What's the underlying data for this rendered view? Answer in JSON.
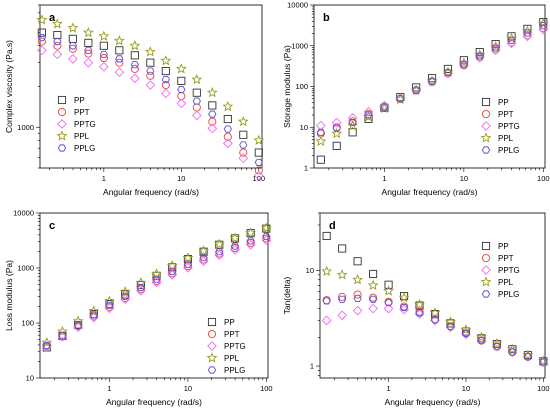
{
  "series_styles": [
    {
      "name": "PP",
      "marker": "square",
      "color": "#333333"
    },
    {
      "name": "PPT",
      "marker": "circle",
      "color": "#e8413a"
    },
    {
      "name": "PPTG",
      "marker": "diamond",
      "color": "#ee6bee"
    },
    {
      "name": "PPL",
      "marker": "star",
      "color": "#9a9a1e"
    },
    {
      "name": "PPLG",
      "marker": "hexagon",
      "color": "#5b4fd6"
    }
  ],
  "chart_data": [
    {
      "type": "scatter",
      "panel_label": "a",
      "xlabel": "Angular frequency (rad/s)",
      "ylabel": "Complex viscosity (Pa.s)",
      "xscale": "log",
      "yscale": "log",
      "xlim": [
        0.15,
        110
      ],
      "ylim": [
        500,
        8000
      ],
      "xticks": [
        1,
        10,
        100
      ],
      "xticklabels": [
        "1",
        "10",
        "100"
      ],
      "yticks": [
        1000
      ],
      "yticklabels": [
        "1000"
      ],
      "legend": "bottom-left",
      "x": [
        0.1585,
        0.2512,
        0.3981,
        0.631,
        1.0,
        1.585,
        2.512,
        3.981,
        6.31,
        10.0,
        15.85,
        25.12,
        39.81,
        63.1,
        100.0
      ],
      "series": [
        {
          "name": "PP",
          "values": [
            5000,
            4800,
            4500,
            4200,
            4000,
            3700,
            3400,
            3000,
            2600,
            2200,
            1800,
            1450,
            1150,
            880,
            650
          ]
        },
        {
          "name": "PPT",
          "values": [
            4300,
            4000,
            3800,
            3500,
            3250,
            3000,
            2700,
            2400,
            2050,
            1700,
            1400,
            1100,
            850,
            650,
            480
          ]
        },
        {
          "name": "PPTG",
          "values": [
            3700,
            3450,
            3200,
            3000,
            2800,
            2550,
            2300,
            2050,
            1780,
            1500,
            1220,
            980,
            760,
            590,
            440
          ]
        },
        {
          "name": "PPL",
          "values": [
            6200,
            5800,
            5400,
            5000,
            4700,
            4350,
            4000,
            3600,
            3100,
            2700,
            2250,
            1800,
            1420,
            1100,
            800
          ]
        },
        {
          "name": "PPLG",
          "values": [
            4600,
            4300,
            4000,
            3700,
            3450,
            3200,
            2900,
            2600,
            2250,
            1900,
            1560,
            1250,
            970,
            740,
            550
          ]
        }
      ]
    },
    {
      "type": "scatter",
      "panel_label": "b",
      "xlabel": "Angular frequency (rad/s)",
      "ylabel": "Storage modulus (Pa)",
      "xscale": "log",
      "yscale": "log",
      "xlim": [
        0.13,
        105
      ],
      "ylim": [
        1,
        10000
      ],
      "xticks": [
        1,
        10,
        100
      ],
      "xticklabels": [
        "1",
        "10",
        "100"
      ],
      "yticks": [
        1,
        10,
        100,
        1000,
        10000
      ],
      "yticklabels": [
        "1",
        "10",
        "100",
        "1000",
        "10000"
      ],
      "legend": "bottom-right",
      "x": [
        0.1585,
        0.2512,
        0.3981,
        0.631,
        1.0,
        1.585,
        2.512,
        3.981,
        6.31,
        10.0,
        15.85,
        25.12,
        39.81,
        63.1,
        100.0
      ],
      "series": [
        {
          "name": "PP",
          "values": [
            1.6,
            3.5,
            7.5,
            16,
            30,
            55,
            95,
            160,
            270,
            440,
            700,
            1100,
            1700,
            2600,
            3800
          ]
        },
        {
          "name": "PPT",
          "values": [
            7,
            10,
            14,
            21,
            32,
            50,
            80,
            130,
            210,
            330,
            520,
            800,
            1200,
            1800,
            2700
          ]
        },
        {
          "name": "PPTG",
          "values": [
            11,
            13,
            17,
            24,
            34,
            52,
            82,
            130,
            210,
            330,
            510,
            780,
            1150,
            1700,
            2500
          ]
        },
        {
          "name": "PPL",
          "values": [
            4.5,
            7,
            11,
            18,
            29,
            48,
            80,
            135,
            225,
            370,
            600,
            950,
            1500,
            2300,
            3500
          ]
        },
        {
          "name": "PPLG",
          "values": [
            7.5,
            9.5,
            13,
            20,
            31,
            50,
            82,
            135,
            220,
            350,
            560,
            880,
            1350,
            2050,
            3100
          ]
        }
      ]
    },
    {
      "type": "scatter",
      "panel_label": "c",
      "xlabel": "Angular frequency (rad/s)",
      "ylabel": "Loss modulus (Pa)",
      "xscale": "log",
      "yscale": "log",
      "xlim": [
        0.13,
        105
      ],
      "ylim": [
        10,
        10000
      ],
      "xticks": [
        1,
        10,
        100
      ],
      "xticklabels": [
        "1",
        "10",
        "100"
      ],
      "yticks": [
        10,
        100,
        1000,
        10000
      ],
      "yticklabels": [
        "10",
        "100",
        "1000",
        "10000"
      ],
      "legend": "bottom-right",
      "x": [
        0.1585,
        0.2512,
        0.3981,
        0.631,
        1.0,
        1.585,
        2.512,
        3.981,
        6.31,
        10.0,
        15.85,
        25.12,
        39.81,
        63.1,
        100.0
      ],
      "series": [
        {
          "name": "PP",
          "values": [
            36,
            58,
            92,
            145,
            220,
            330,
            490,
            720,
            1030,
            1450,
            1980,
            2650,
            3450,
            4300,
            5200
          ]
        },
        {
          "name": "PPT",
          "values": [
            38,
            58,
            88,
            132,
            195,
            285,
            410,
            580,
            800,
            1080,
            1420,
            1830,
            2300,
            2850,
            3450
          ]
        },
        {
          "name": "PPTG",
          "values": [
            37,
            56,
            84,
            126,
            185,
            270,
            385,
            545,
            750,
            1010,
            1330,
            1710,
            2150,
            2650,
            3200
          ]
        },
        {
          "name": "PPL",
          "values": [
            44,
            70,
            108,
            165,
            250,
            370,
            540,
            780,
            1100,
            1520,
            2050,
            2700,
            3500,
            4350,
            5300
          ]
        },
        {
          "name": "PPLG",
          "values": [
            39,
            60,
            92,
            140,
            210,
            305,
            440,
            625,
            865,
            1170,
            1540,
            1980,
            2500,
            3100,
            3750
          ]
        }
      ]
    },
    {
      "type": "scatter",
      "panel_label": "d",
      "xlabel": "Angular frequency (rad/s)",
      "ylabel": "Tan(delta)",
      "xscale": "log",
      "yscale": "log",
      "xlim": [
        0.13,
        105
      ],
      "ylim": [
        0.75,
        40
      ],
      "xticks": [
        1,
        10,
        100
      ],
      "xticklabels": [
        "1",
        "10",
        "100"
      ],
      "yticks": [
        1,
        10
      ],
      "yticklabels": [
        "1",
        "10"
      ],
      "legend": "top-right",
      "x": [
        0.1585,
        0.2512,
        0.3981,
        0.631,
        1.0,
        1.585,
        2.512,
        3.981,
        6.31,
        10.0,
        15.85,
        25.12,
        39.81,
        63.1,
        100.0
      ],
      "series": [
        {
          "name": "PP",
          "values": [
            23,
            17,
            12.5,
            9.2,
            7.1,
            5.4,
            4.3,
            3.5,
            2.8,
            2.3,
            1.95,
            1.7,
            1.5,
            1.3,
            1.12
          ]
        },
        {
          "name": "PPT",
          "values": [
            4.9,
            5.3,
            5.6,
            5.2,
            4.7,
            4.2,
            3.7,
            3.1,
            2.6,
            2.2,
            1.85,
            1.6,
            1.4,
            1.25,
            1.1
          ]
        },
        {
          "name": "PPTG",
          "values": [
            3.0,
            3.4,
            3.8,
            4.0,
            4.0,
            3.9,
            3.5,
            3.0,
            2.55,
            2.15,
            1.85,
            1.6,
            1.4,
            1.25,
            1.1
          ]
        },
        {
          "name": "PPL",
          "values": [
            9.8,
            9.0,
            8.0,
            7.0,
            6.1,
            5.2,
            4.4,
            3.6,
            2.9,
            2.4,
            2.0,
            1.72,
            1.5,
            1.3,
            1.13
          ]
        },
        {
          "name": "PPLG",
          "values": [
            4.8,
            5.0,
            5.1,
            5.0,
            4.6,
            4.1,
            3.6,
            3.05,
            2.6,
            2.2,
            1.85,
            1.6,
            1.4,
            1.25,
            1.1
          ]
        }
      ]
    }
  ]
}
